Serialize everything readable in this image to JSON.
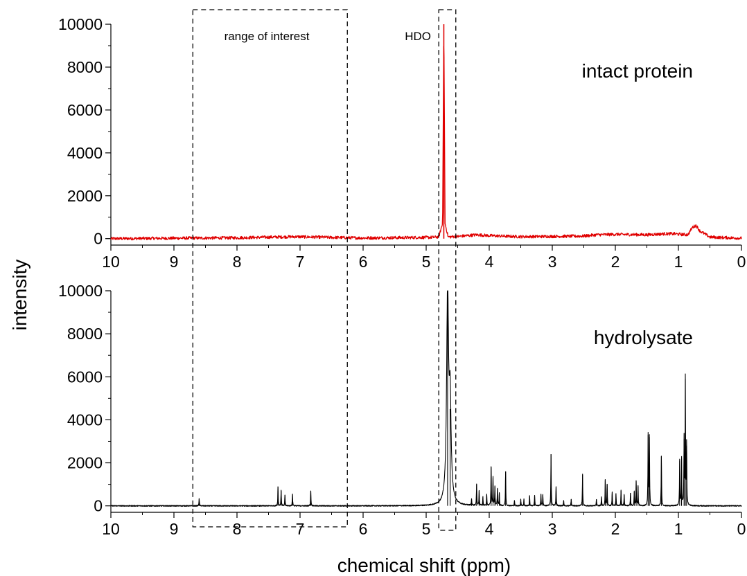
{
  "chart_data": [
    {
      "type": "line",
      "panel": "top",
      "panel_label": "intact protein",
      "xlabel": "",
      "ylabel": "intensity",
      "xlim": [
        10,
        0
      ],
      "ylim": [
        -300,
        10000
      ],
      "x_reversed": true,
      "x_ticks": [
        10,
        9,
        8,
        7,
        6,
        5,
        4,
        3,
        2,
        1,
        0
      ],
      "y_ticks": [
        0,
        2000,
        4000,
        6000,
        8000,
        10000
      ],
      "series": [
        {
          "color": "#e00000",
          "noise_level": 70,
          "points": [
            [
              10,
              0
            ],
            [
              8,
              40
            ],
            [
              7.1,
              90
            ],
            [
              6,
              30
            ],
            [
              4.9,
              60
            ],
            [
              4.8,
              80
            ],
            [
              4.74,
              700
            ],
            [
              4.72,
              10000
            ],
            [
              4.7,
              700
            ],
            [
              4.65,
              80
            ],
            [
              4.5,
              100
            ],
            [
              4.2,
              180
            ],
            [
              4.0,
              140
            ],
            [
              3.5,
              90
            ],
            [
              2.5,
              120
            ],
            [
              2.3,
              180
            ],
            [
              2.0,
              200
            ],
            [
              1.5,
              180
            ],
            [
              1.2,
              230
            ],
            [
              1.05,
              220
            ],
            [
              0.85,
              180
            ],
            [
              0.78,
              520
            ],
            [
              0.72,
              620
            ],
            [
              0.66,
              360
            ],
            [
              0.5,
              70
            ],
            [
              0,
              20
            ]
          ]
        }
      ]
    },
    {
      "type": "line",
      "panel": "bottom",
      "panel_label": "hydrolysate",
      "xlabel": "chemical shift (ppm)",
      "ylabel": "intensity",
      "xlim": [
        10,
        0
      ],
      "ylim": [
        -300,
        10000
      ],
      "x_reversed": true,
      "x_ticks": [
        10,
        9,
        8,
        7,
        6,
        5,
        4,
        3,
        2,
        1,
        0
      ],
      "y_ticks": [
        0,
        2000,
        4000,
        6000,
        8000,
        10000
      ],
      "series": [
        {
          "color": "#000000",
          "noise_level": 25,
          "peaks": [
            [
              8.6,
              350
            ],
            [
              7.35,
              900
            ],
            [
              7.3,
              700
            ],
            [
              7.24,
              500
            ],
            [
              7.12,
              550
            ],
            [
              6.83,
              700
            ],
            [
              4.66,
              10000
            ],
            [
              4.62,
              4500
            ],
            [
              4.28,
              300
            ],
            [
              4.2,
              1000
            ],
            [
              4.16,
              700
            ],
            [
              4.1,
              400
            ],
            [
              4.04,
              500
            ],
            [
              3.97,
              1800
            ],
            [
              3.94,
              1300
            ],
            [
              3.91,
              900
            ],
            [
              3.87,
              800
            ],
            [
              3.84,
              600
            ],
            [
              3.74,
              1600
            ],
            [
              3.6,
              250
            ],
            [
              3.5,
              300
            ],
            [
              3.45,
              300
            ],
            [
              3.36,
              450
            ],
            [
              3.28,
              500
            ],
            [
              3.18,
              550
            ],
            [
              3.15,
              500
            ],
            [
              3.02,
              2400
            ],
            [
              2.94,
              900
            ],
            [
              2.82,
              250
            ],
            [
              2.7,
              300
            ],
            [
              2.52,
              1450
            ],
            [
              2.3,
              300
            ],
            [
              2.22,
              400
            ],
            [
              2.16,
              1200
            ],
            [
              2.13,
              1000
            ],
            [
              2.05,
              650
            ],
            [
              1.99,
              550
            ],
            [
              1.91,
              700
            ],
            [
              1.86,
              500
            ],
            [
              1.76,
              600
            ],
            [
              1.7,
              650
            ],
            [
              1.67,
              1150
            ],
            [
              1.64,
              900
            ],
            [
              1.48,
              3300
            ],
            [
              1.46,
              3200
            ],
            [
              1.27,
              2300
            ],
            [
              0.98,
              2100
            ],
            [
              0.95,
              2200
            ],
            [
              0.91,
              3100
            ],
            [
              0.89,
              5900
            ],
            [
              0.87,
              2800
            ]
          ]
        }
      ]
    }
  ],
  "annotations": {
    "range_box_label": "range of interest",
    "range_box_ppm": [
      8.7,
      6.25
    ],
    "hdo_box_label": "HDO",
    "hdo_box_ppm": [
      4.8,
      4.53
    ]
  }
}
